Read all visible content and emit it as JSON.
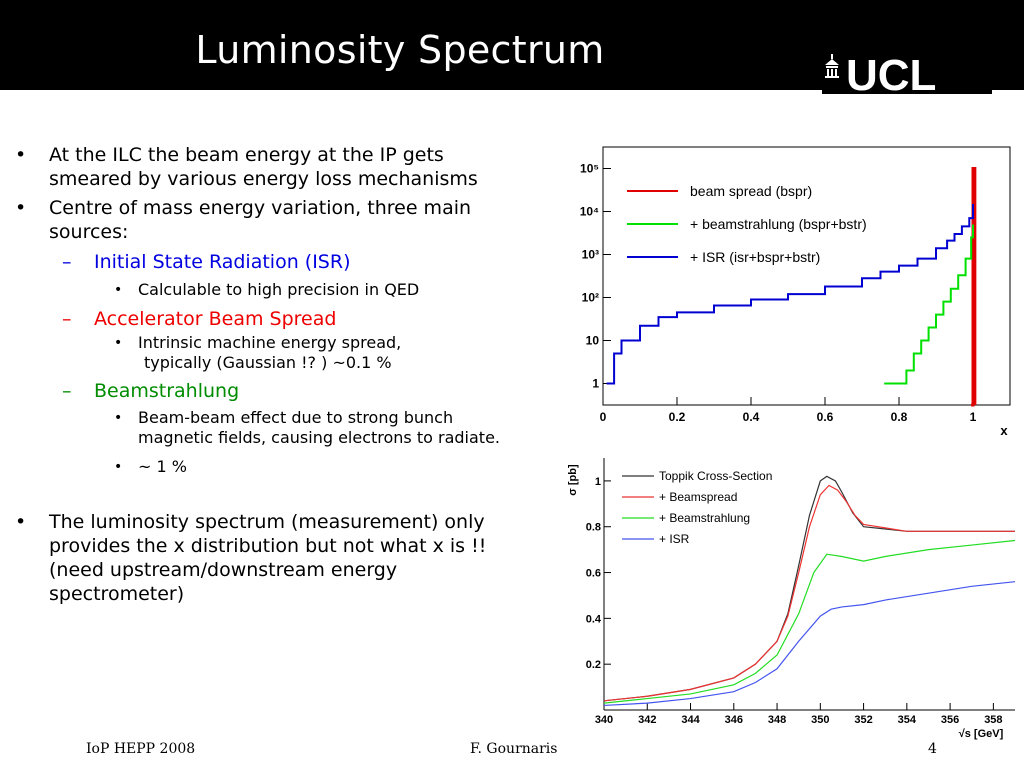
{
  "slide": {
    "title": "Luminosity Spectrum",
    "logo_text": "UCL"
  },
  "bullets": {
    "b1_line1": "At the ILC the beam energy at the IP gets",
    "b1_line2": "smeared by various energy loss mechanisms",
    "b2_line1": "Centre of mass energy variation, three main",
    "b2_line2": "sources:",
    "isr_title": "Initial State Radiation (ISR)",
    "isr_detail": "Calculable to high precision in QED",
    "accel_title": "Accelerator Beam Spread",
    "accel_detail1": "Intrinsic machine energy spread,",
    "accel_detail2": "typically (Gaussian !? ) ~0.1 %",
    "beam_title": "Beamstrahlung",
    "beam_detail1": "Beam-beam effect due to strong bunch",
    "beam_detail2": "magnetic fields, causing electrons to radiate.",
    "beam_detail3": "~ 1 %",
    "b3_line1": "The luminosity spectrum (measurement) only",
    "b3_line2": "provides the x distribution but not what x is !!",
    "b3_line3": "(need upstream/downstream energy",
    "b3_line4": "spectrometer)",
    "dash": "–",
    "dot": "•"
  },
  "footer": {
    "left": "IoP HEPP 2008",
    "center": "F. Gournaris",
    "page": "4"
  },
  "colors": {
    "header_bg": "#000000",
    "isr_text": "#0000e0",
    "accel_text": "#ee0000",
    "beam_text": "#008c00"
  },
  "chart_data": [
    {
      "type": "line",
      "title": "",
      "xlabel": "x",
      "ylabel": "",
      "xlim": [
        0,
        1.1
      ],
      "ylim_log10": [
        -0.5,
        5.5
      ],
      "log_y": true,
      "x_ticks": [
        "0",
        "0.2",
        "0.4",
        "0.6",
        "0.8",
        "1"
      ],
      "y_ticks": [
        "1",
        "10",
        "10²",
        "10³",
        "10⁴",
        "10⁵"
      ],
      "legend_position": "top-left",
      "series": [
        {
          "name": "beam spread (bspr)",
          "color": "#e00000",
          "x": [
            0.995,
            1.0,
            1.005
          ],
          "y": [
            0.1,
            100000,
            0.1
          ]
        },
        {
          "name": "+ beamstrahlung (bspr+bstr)",
          "color": "#00e000",
          "x": [
            0.76,
            0.8,
            0.82,
            0.84,
            0.86,
            0.88,
            0.9,
            0.92,
            0.94,
            0.96,
            0.98,
            0.995,
            1.0
          ],
          "y": [
            1,
            1,
            2,
            5,
            10,
            20,
            40,
            80,
            160,
            330,
            800,
            2500,
            5000
          ]
        },
        {
          "name": "+ ISR (isr+bspr+bstr)",
          "color": "#0000d0",
          "x": [
            0.01,
            0.03,
            0.05,
            0.1,
            0.15,
            0.2,
            0.3,
            0.4,
            0.5,
            0.6,
            0.7,
            0.75,
            0.8,
            0.85,
            0.9,
            0.93,
            0.95,
            0.97,
            0.99,
            1.0
          ],
          "y": [
            1,
            5,
            10,
            22,
            35,
            45,
            65,
            90,
            120,
            180,
            280,
            400,
            550,
            800,
            1400,
            2100,
            3000,
            4500,
            7000,
            15000
          ]
        }
      ]
    },
    {
      "type": "line",
      "title": "",
      "xlabel": "√s [GeV]",
      "ylabel": "σ [pb]",
      "xlim": [
        340,
        359
      ],
      "ylim": [
        0,
        1.1
      ],
      "x_ticks": [
        "340",
        "342",
        "344",
        "346",
        "348",
        "350",
        "352",
        "354",
        "356",
        "358"
      ],
      "y_ticks": [
        "0.2",
        "0.4",
        "0.6",
        "0.8",
        "1"
      ],
      "legend_position": "top-left",
      "series": [
        {
          "name": "Toppik Cross-Section",
          "color": "#333333",
          "x": [
            340,
            342,
            344,
            346,
            347,
            348,
            348.5,
            349,
            349.5,
            350,
            350.3,
            350.7,
            351,
            351.5,
            352,
            354,
            356,
            359
          ],
          "y": [
            0.04,
            0.06,
            0.09,
            0.14,
            0.2,
            0.3,
            0.42,
            0.63,
            0.85,
            1.0,
            1.02,
            1.0,
            0.95,
            0.86,
            0.8,
            0.78,
            0.78,
            0.78
          ]
        },
        {
          "name": "+ Beamspread",
          "color": "#ee3333",
          "x": [
            340,
            342,
            344,
            346,
            347,
            348,
            348.5,
            349,
            349.5,
            350,
            350.4,
            350.8,
            351.2,
            351.6,
            352,
            354,
            356,
            359
          ],
          "y": [
            0.04,
            0.06,
            0.09,
            0.14,
            0.2,
            0.3,
            0.41,
            0.6,
            0.8,
            0.94,
            0.98,
            0.96,
            0.91,
            0.85,
            0.81,
            0.78,
            0.78,
            0.78
          ]
        },
        {
          "name": "+ Beamstrahlung",
          "color": "#22dd22",
          "x": [
            340,
            342,
            344,
            346,
            347,
            348,
            349,
            349.7,
            350.3,
            351,
            352,
            353,
            355,
            357,
            359
          ],
          "y": [
            0.03,
            0.05,
            0.07,
            0.11,
            0.16,
            0.24,
            0.42,
            0.6,
            0.68,
            0.67,
            0.65,
            0.67,
            0.7,
            0.72,
            0.74
          ]
        },
        {
          "name": "+ ISR",
          "color": "#4455ee",
          "x": [
            340,
            342,
            344,
            346,
            347,
            348,
            349,
            350,
            350.5,
            351,
            352,
            353,
            355,
            357,
            359
          ],
          "y": [
            0.02,
            0.03,
            0.05,
            0.08,
            0.12,
            0.18,
            0.3,
            0.41,
            0.44,
            0.45,
            0.46,
            0.48,
            0.51,
            0.54,
            0.56
          ]
        }
      ]
    }
  ]
}
